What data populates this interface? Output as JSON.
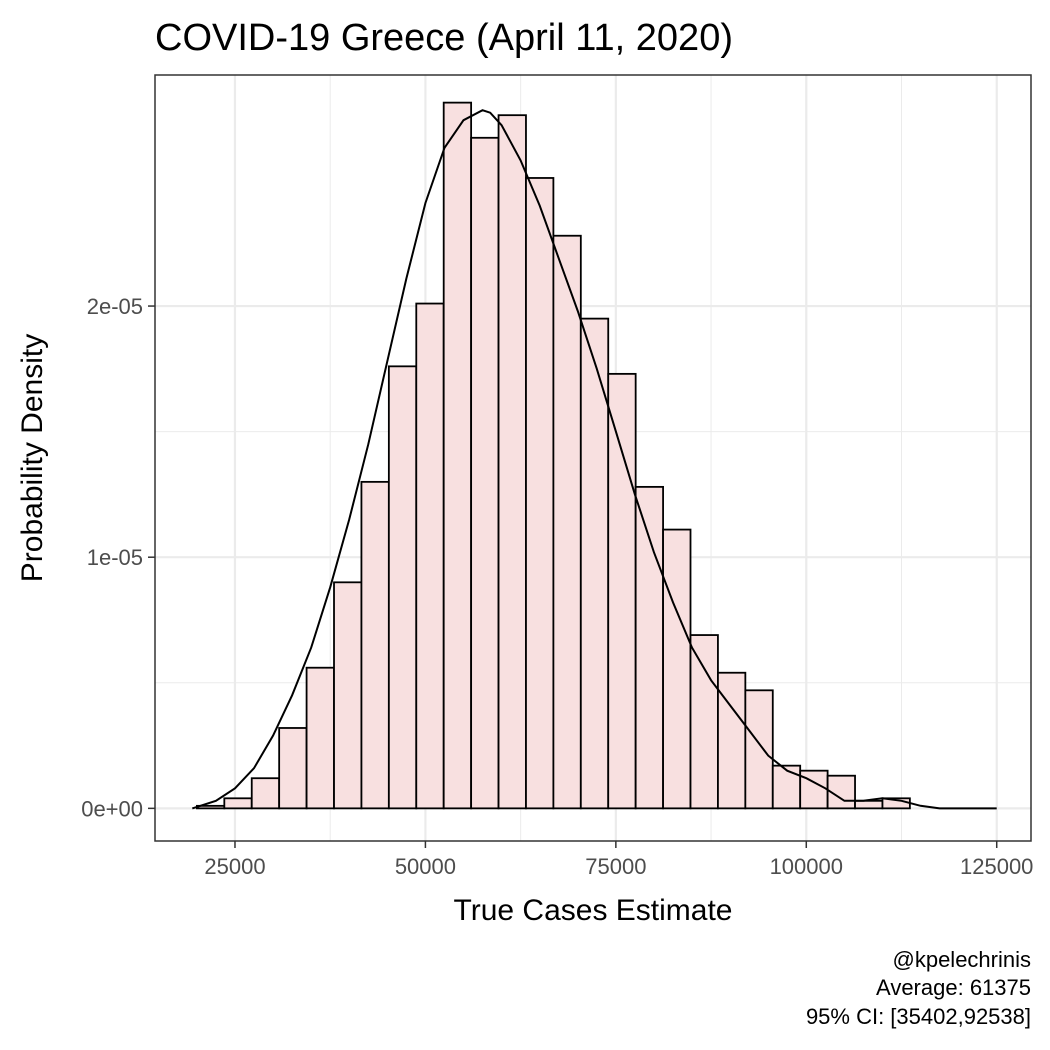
{
  "chart_data": {
    "type": "histogram",
    "title": "COVID-19 Greece (April 11, 2020)",
    "xlabel": "True Cases Estimate",
    "ylabel": "Probability Density",
    "xlim": [
      14500,
      129500
    ],
    "ylim": [
      -1.3e-06,
      2.92e-05
    ],
    "x_ticks": [
      25000,
      50000,
      75000,
      100000,
      125000
    ],
    "x_tick_labels": [
      "25000",
      "50000",
      "75000",
      "100000",
      "125000"
    ],
    "y_ticks": [
      0,
      1e-05,
      2e-05
    ],
    "y_tick_labels": [
      "0e+00",
      "1e-05",
      "2e-05"
    ],
    "grid": true,
    "bin_width": 3600,
    "bins": [
      {
        "x0": 20000,
        "density": 1e-07
      },
      {
        "x0": 23600,
        "density": 4e-07
      },
      {
        "x0": 27200,
        "density": 1.2e-06
      },
      {
        "x0": 30800,
        "density": 3.2e-06
      },
      {
        "x0": 34400,
        "density": 5.6e-06
      },
      {
        "x0": 38000,
        "density": 9e-06
      },
      {
        "x0": 41600,
        "density": 1.3e-05
      },
      {
        "x0": 45200,
        "density": 1.76e-05
      },
      {
        "x0": 48800,
        "density": 2.01e-05
      },
      {
        "x0": 52400,
        "density": 2.81e-05
      },
      {
        "x0": 56000,
        "density": 2.67e-05
      },
      {
        "x0": 59600,
        "density": 2.76e-05
      },
      {
        "x0": 63200,
        "density": 2.51e-05
      },
      {
        "x0": 66800,
        "density": 2.28e-05
      },
      {
        "x0": 70400,
        "density": 1.95e-05
      },
      {
        "x0": 74000,
        "density": 1.73e-05
      },
      {
        "x0": 77600,
        "density": 1.28e-05
      },
      {
        "x0": 81200,
        "density": 1.11e-05
      },
      {
        "x0": 84800,
        "density": 6.9e-06
      },
      {
        "x0": 88400,
        "density": 5.4e-06
      },
      {
        "x0": 92000,
        "density": 4.7e-06
      },
      {
        "x0": 95600,
        "density": 1.7e-06
      },
      {
        "x0": 99200,
        "density": 1.5e-06
      },
      {
        "x0": 102800,
        "density": 1.3e-06
      },
      {
        "x0": 106400,
        "density": 3e-07
      },
      {
        "x0": 110000,
        "density": 4e-07
      },
      {
        "x0": 113600,
        "density": 0.0
      },
      {
        "x0": 117200,
        "density": 0.0
      },
      {
        "x0": 120800,
        "density": 0.0
      }
    ],
    "density_curve": {
      "x": [
        19400,
        22500,
        25000,
        27500,
        30000,
        32500,
        35000,
        37500,
        40000,
        42500,
        45000,
        47500,
        50000,
        52500,
        55000,
        57500,
        58500,
        60000,
        62500,
        65000,
        67500,
        70000,
        72500,
        75000,
        77500,
        80000,
        82500,
        85000,
        87500,
        90000,
        92500,
        95000,
        97500,
        100000,
        102500,
        105000,
        107500,
        110000,
        112500,
        115000,
        117500,
        120000,
        125000
      ],
      "y": [
        0.0,
        3e-07,
        8e-07,
        1.6e-06,
        2.9e-06,
        4.5e-06,
        6.4e-06,
        8.8e-06,
        1.15e-05,
        1.45e-05,
        1.78e-05,
        2.11e-05,
        2.41e-05,
        2.63e-05,
        2.74e-05,
        2.78e-05,
        2.77e-05,
        2.72e-05,
        2.58e-05,
        2.4e-05,
        2.19e-05,
        1.98e-05,
        1.75e-05,
        1.5e-05,
        1.25e-05,
        1.02e-05,
        8.2e-06,
        6.4e-06,
        5.1e-06,
        4.1e-06,
        3.1e-06,
        2.1e-06,
        1.5e-06,
        1.2e-06,
        8e-07,
        3e-07,
        3e-07,
        4e-07,
        3e-07,
        1e-07,
        0.0,
        0.0,
        0.0
      ]
    },
    "bar_fill": "#f8e0e0",
    "bar_stroke": "#000000",
    "grid_color": "#ebebeb",
    "annotations": [
      "@kpelechrinis",
      "Average: 61375",
      "95% CI: [35402,92538]"
    ]
  }
}
